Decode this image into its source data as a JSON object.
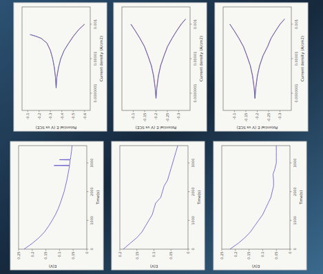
{
  "chart_data": [
    {
      "type": "line",
      "log": "x",
      "xlabel": "Current density (A/cm2)",
      "ylabel": "Potential E (V vs SCE)",
      "xlim": [
        1e-08,
        0.01
      ],
      "xticks": [
        {
          "value": 1e-07,
          "label": "0.0000001"
        },
        {
          "value": 1e-05,
          "label": "0.00001"
        },
        {
          "value": 0.001,
          "label": "0.001"
        }
      ],
      "ylim": [
        -0.65,
        -0.05
      ],
      "yticks": [
        -0.6,
        -0.5,
        -0.4,
        -0.3,
        -0.2,
        -0.1
      ],
      "series": [
        {
          "color": "#d9534f",
          "x": [
            0.001,
            0.0005,
            0.0002,
            8e-05,
            3e-05,
            1e-05,
            3e-06,
            8e-07,
            2e-07,
            8e-07,
            3e-06,
            1e-05,
            3e-05,
            8e-05,
            0.00015,
            0.0002,
            0.00025
          ],
          "values": [
            -0.6,
            -0.55,
            -0.5,
            -0.46,
            -0.42,
            -0.39,
            -0.37,
            -0.355,
            -0.35,
            -0.345,
            -0.335,
            -0.32,
            -0.3,
            -0.27,
            -0.22,
            -0.17,
            -0.12
          ]
        },
        {
          "color": "#3a5fcd",
          "x": [
            0.001,
            0.0005,
            0.0002,
            8e-05,
            3e-05,
            1e-05,
            3e-06,
            8e-07,
            2e-07,
            8e-07,
            3e-06,
            1e-05,
            3e-05,
            8e-05,
            0.00015,
            0.0002,
            0.00025
          ],
          "values": [
            -0.6,
            -0.552,
            -0.503,
            -0.462,
            -0.421,
            -0.391,
            -0.371,
            -0.356,
            -0.35,
            -0.344,
            -0.334,
            -0.319,
            -0.299,
            -0.268,
            -0.219,
            -0.171,
            -0.121
          ]
        }
      ]
    },
    {
      "type": "line",
      "log": "x",
      "xlabel": "Current density (A/cm2)",
      "ylabel": "Potential E (V vs SCE)",
      "xlim": [
        1e-08,
        0.01
      ],
      "xticks": [
        {
          "value": 1e-07,
          "label": "0.0000001"
        },
        {
          "value": 1e-05,
          "label": "0.00001"
        },
        {
          "value": 0.001,
          "label": "0.001"
        }
      ],
      "ylim": [
        -0.35,
        -0.05
      ],
      "yticks": [
        -0.3,
        -0.25,
        -0.2,
        -0.15,
        -0.1
      ],
      "series": [
        {
          "color": "#d9534f",
          "x": [
            0.002,
            0.001,
            0.0004,
            0.00015,
            5e-05,
            1.5e-05,
            4e-06,
            1e-06,
            2e-07,
            5e-08,
            2e-07,
            1e-06,
            4e-06,
            1.5e-05,
            5e-05,
            0.00015,
            0.0004,
            0.001
          ],
          "values": [
            -0.33,
            -0.31,
            -0.29,
            -0.27,
            -0.25,
            -0.235,
            -0.22,
            -0.21,
            -0.203,
            -0.2,
            -0.197,
            -0.19,
            -0.18,
            -0.165,
            -0.15,
            -0.13,
            -0.11,
            -0.09
          ]
        },
        {
          "color": "#3a5fcd",
          "x": [
            0.002,
            0.001,
            0.0004,
            0.00015,
            5e-05,
            1.5e-05,
            4e-06,
            1e-06,
            2e-07,
            5e-08,
            2e-07,
            1e-06,
            4e-06,
            1.5e-05,
            5e-05,
            0.00015,
            0.0004,
            0.001
          ],
          "values": [
            -0.331,
            -0.312,
            -0.291,
            -0.271,
            -0.251,
            -0.236,
            -0.221,
            -0.211,
            -0.204,
            -0.2,
            -0.196,
            -0.189,
            -0.179,
            -0.164,
            -0.149,
            -0.129,
            -0.109,
            -0.089
          ]
        }
      ]
    },
    {
      "type": "line",
      "log": "x",
      "xlabel": "Current density (A/cm2)",
      "ylabel": "Potential E (V vs SCE)",
      "xlim": [
        1e-08,
        0.01
      ],
      "xticks": [
        {
          "value": 1e-07,
          "label": "0.0000001"
        },
        {
          "value": 1e-05,
          "label": "0.00001"
        },
        {
          "value": 0.001,
          "label": "0.001"
        }
      ],
      "ylim": [
        -0.35,
        -0.05
      ],
      "yticks": [
        -0.3,
        -0.25,
        -0.2,
        -0.15,
        -0.1
      ],
      "series": [
        {
          "color": "#d9534f",
          "x": [
            0.002,
            0.001,
            0.0004,
            0.00015,
            5e-05,
            1.5e-05,
            4e-06,
            1e-06,
            2e-07,
            5e-08,
            2e-07,
            1e-06,
            4e-06,
            1.5e-05,
            5e-05,
            0.00015,
            0.0004,
            0.001
          ],
          "values": [
            -0.32,
            -0.3,
            -0.28,
            -0.26,
            -0.245,
            -0.225,
            -0.21,
            -0.2,
            -0.193,
            -0.19,
            -0.187,
            -0.18,
            -0.17,
            -0.155,
            -0.14,
            -0.12,
            -0.1,
            -0.08
          ]
        },
        {
          "color": "#3a5fcd",
          "x": [
            0.002,
            0.001,
            0.0004,
            0.00015,
            5e-05,
            1.5e-05,
            4e-06,
            1e-06,
            2e-07,
            5e-08,
            2e-07,
            1e-06,
            4e-06,
            1.5e-05,
            5e-05,
            0.00015,
            0.0004,
            0.001
          ],
          "values": [
            -0.321,
            -0.301,
            -0.281,
            -0.261,
            -0.246,
            -0.226,
            -0.211,
            -0.201,
            -0.194,
            -0.19,
            -0.186,
            -0.179,
            -0.169,
            -0.154,
            -0.139,
            -0.119,
            -0.099,
            -0.079
          ]
        }
      ]
    },
    {
      "type": "line",
      "xlabel": "Time(s)",
      "ylabel": "E(V)",
      "xlim": [
        0,
        3600
      ],
      "xticks": [
        0,
        1000,
        2000,
        3000
      ],
      "ylim": [
        0,
        0.25
      ],
      "yticks": [
        0,
        0.05,
        0.1,
        0.15,
        0.2,
        0.25
      ],
      "series": [
        {
          "color": "#5b4fc9",
          "x": [
            0,
            200,
            400,
            600,
            800,
            1000,
            1200,
            1400,
            1600,
            1800,
            2000,
            2200,
            2400,
            2600,
            2800,
            2900,
            2910,
            2920,
            3000,
            3100,
            3110,
            3120,
            3200,
            3400,
            3600
          ],
          "values": [
            0.23,
            0.2,
            0.175,
            0.155,
            0.14,
            0.127,
            0.115,
            0.105,
            0.097,
            0.09,
            0.083,
            0.078,
            0.073,
            0.069,
            0.065,
            0.063,
            0.12,
            0.063,
            0.062,
            0.061,
            0.1,
            0.06,
            0.059,
            0.056,
            0.054
          ]
        }
      ]
    },
    {
      "type": "line",
      "xlabel": "Time(s)",
      "ylabel": "E(V)",
      "xlim": [
        0,
        3600
      ],
      "xticks": [
        0,
        1000,
        2000,
        3000
      ],
      "ylim": [
        0,
        0.2
      ],
      "yticks": [
        0,
        0.05,
        0.1,
        0.15,
        0.2
      ],
      "series": [
        {
          "color": "#5b4fc9",
          "x": [
            0,
            200,
            400,
            600,
            800,
            1000,
            1200,
            1400,
            1600,
            1800,
            2000,
            2200,
            2400,
            2600,
            2800,
            3000,
            3200,
            3400,
            3600
          ],
          "values": [
            0.19,
            0.17,
            0.15,
            0.135,
            0.125,
            0.115,
            0.105,
            0.1,
            0.095,
            0.08,
            0.075,
            0.07,
            0.06,
            0.055,
            0.05,
            0.045,
            0.04,
            0.035,
            0.03
          ]
        }
      ]
    },
    {
      "type": "line",
      "xlabel": "Time(s)",
      "ylabel": "E(V)",
      "xlim": [
        0,
        3600
      ],
      "xticks": [
        0,
        1000,
        2000,
        3000
      ],
      "ylim": [
        0,
        0.25
      ],
      "yticks": [
        0,
        0.05,
        0.1,
        0.15,
        0.2,
        0.25
      ],
      "series": [
        {
          "color": "#5b4fc9",
          "x": [
            0,
            200,
            400,
            600,
            800,
            1000,
            1200,
            1400,
            1600,
            1800,
            2000,
            2200,
            2400,
            2600,
            2800,
            3000,
            3200,
            3400,
            3600
          ],
          "values": [
            0.22,
            0.19,
            0.165,
            0.145,
            0.13,
            0.115,
            0.1,
            0.09,
            0.08,
            0.07,
            0.065,
            0.06,
            0.06,
            0.062,
            0.055,
            0.05,
            0.05,
            0.05,
            0.05
          ]
        }
      ]
    }
  ]
}
